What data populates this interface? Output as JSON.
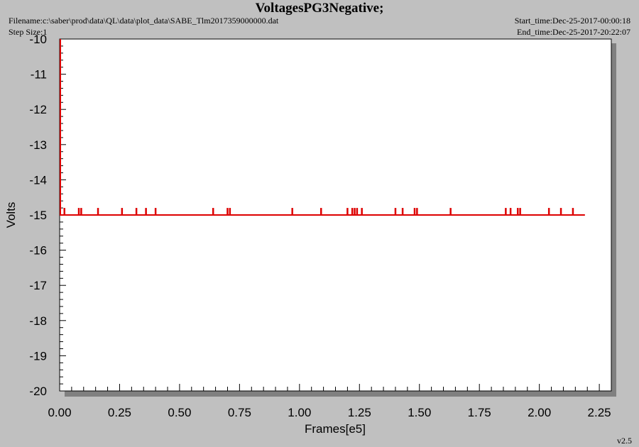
{
  "header": {
    "title": "VoltagesPG3Negative;",
    "filename": "Filename:c:\\saber\\prod\\data\\QL\\data\\plot_data\\SABE_Tlm2017359000000.dat",
    "step_size": "Step Size:1",
    "start_time": "Start_time:Dec-25-2017-00:00:18",
    "end_time": "End_time:Dec-25-2017-20:22:07",
    "version": "v2.5"
  },
  "colors": {
    "background": "#c0c0c0",
    "plot_area": "#ffffff",
    "series": "#dd0000",
    "shadow": "#808080"
  },
  "chart_data": {
    "type": "line",
    "title": "VoltagesPG3Negative;",
    "xlabel": "Frames[e5]",
    "ylabel": "Volts",
    "xlim": [
      0.0,
      2.3
    ],
    "ylim": [
      -20,
      -10
    ],
    "x_ticks": [
      "0.00",
      "0.25",
      "0.50",
      "0.75",
      "1.00",
      "1.25",
      "1.50",
      "1.75",
      "2.00",
      "2.25"
    ],
    "y_ticks": [
      "-10",
      "-11",
      "-12",
      "-13",
      "-14",
      "-15",
      "-16",
      "-17",
      "-18",
      "-19",
      "-20"
    ],
    "grid": false,
    "series": [
      {
        "baseline": -15,
        "x_range": [
          0.0,
          2.19
        ],
        "spike_value": -14.8,
        "spike_x": [
          0.02,
          0.08,
          0.09,
          0.16,
          0.26,
          0.32,
          0.36,
          0.4,
          0.64,
          0.7,
          0.71,
          0.97,
          1.09,
          1.2,
          1.22,
          1.23,
          1.24,
          1.26,
          1.4,
          1.43,
          1.48,
          1.49,
          1.63,
          1.86,
          1.88,
          1.91,
          1.92,
          2.04,
          2.09,
          2.14
        ],
        "initial_spike": [
          -10.0,
          -15.0
        ]
      }
    ]
  }
}
